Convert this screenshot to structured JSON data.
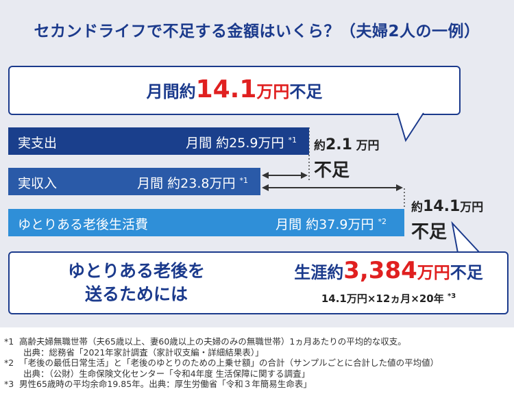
{
  "title": "セカンドライフで不足する金額はいくら？（夫婦2人の一例）",
  "bubble": {
    "prefix": "月間約",
    "amount": "14.1",
    "unit": "万円",
    "suffix": "不足"
  },
  "chart_data": {
    "type": "bar",
    "orientation": "horizontal",
    "unit": "万円/月",
    "categories": [
      "実支出",
      "実収入",
      "ゆとりある老後生活費"
    ],
    "values": [
      25.9,
      23.8,
      37.9
    ],
    "value_labels": [
      "月間 約25.9万円",
      "月間 約23.8万円",
      "月間 約37.9万円"
    ],
    "value_notes": [
      "*1",
      "*1",
      "*2"
    ],
    "bar_colors": [
      "#1a3f8c",
      "#2a5aa8",
      "#2f8fd8"
    ],
    "annotations": [
      {
        "prefix": "約",
        "amount": "2.1",
        "unit": "万円",
        "suffix": "不足",
        "value": 2.1
      },
      {
        "prefix": "約",
        "amount": "14.1",
        "unit": "万円",
        "suffix": "不足",
        "value": 14.1
      }
    ]
  },
  "lifetime": {
    "left_line1": "ゆとりある老後を",
    "left_line2": "送るためには",
    "prefix": "生涯約",
    "amount": "3,384",
    "unit": "万円",
    "suffix": "不足",
    "calc": "14.1万円×12ヵ月×20年",
    "calc_note": "*3"
  },
  "notes": [
    {
      "mark": "*1",
      "text": "高齢夫婦無職世帯（夫65歳以上、妻60歳以上の夫婦のみの無職世帯）1ヵ月あたりの平均的な収支。"
    },
    {
      "mark": "",
      "text": "出典：総務省「2021年家計調査（家計収支編・詳細結果表）」"
    },
    {
      "mark": "*2",
      "text": "「老後の最低日常生活」と「老後のゆとりのための上乗せ額」の合計（サンプルごとに合計した値の平均値）"
    },
    {
      "mark": "",
      "text": "出典：（公財）生命保険文化センター「令和4年度 生活保障に関する調査」"
    },
    {
      "mark": "*3",
      "text": "男性65歳時の平均余命19.85年。出典：厚生労働省「令和３年簡易生命表」"
    }
  ],
  "colors": {
    "navy": "#1b3a8c",
    "accent_red": "#e02020",
    "panel": "#e8eaf1"
  }
}
